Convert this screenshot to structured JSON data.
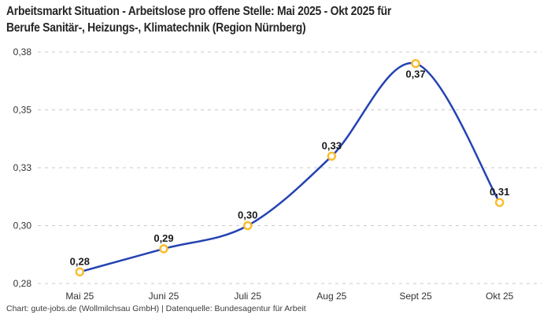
{
  "header": {
    "title_line1": "Arbeitsmarkt Situation - Arbeitslose pro offene Stelle: Mai 2025 - Okt 2025 für",
    "title_line2": "Berufe Sanitär-, Heizungs-, Klimatechnik (Region Nürnberg)"
  },
  "footer": {
    "text": "Chart: gute-jobs.de (Wollmilchsau GmbH) | Datenquelle: Bundesagentur für Arbeit"
  },
  "chart_data": {
    "type": "line",
    "title": "Arbeitsmarkt Situation - Arbeitslose pro offene Stelle: Mai 2025 - Okt 2025 für Berufe Sanitär-, Heizungs-, Klimatechnik (Region Nürnberg)",
    "categories": [
      "Mai 25",
      "Juni 25",
      "Juli 25",
      "Aug 25",
      "Sept 25",
      "Okt 25"
    ],
    "values": [
      0.28,
      0.29,
      0.3,
      0.33,
      0.37,
      0.31
    ],
    "point_labels": [
      "0,28",
      "0,29",
      "0,30",
      "0,33",
      "0,37",
      "0,31"
    ],
    "point_label_position": [
      "above",
      "above",
      "above",
      "above",
      "below",
      "above"
    ],
    "yticks": [
      {
        "value": 0.275,
        "label": "0,28"
      },
      {
        "value": 0.3,
        "label": "0,30"
      },
      {
        "value": 0.325,
        "label": "0,33"
      },
      {
        "value": 0.35,
        "label": "0,35"
      },
      {
        "value": 0.375,
        "label": "0,38"
      }
    ],
    "ylim": [
      0.275,
      0.375
    ],
    "xlabel": "",
    "ylabel": "",
    "grid": "horizontal-dashed",
    "legend": "none",
    "smooth": true,
    "colors": {
      "line": "#2443b2",
      "marker_ring": "#fabd2f",
      "marker_fill": "#ffffff",
      "gridline": "#c9c9c9",
      "tick_label": "#333333",
      "point_label": "#1a1a1a",
      "title": "#262626",
      "footer": "#3c3c3c",
      "background": "#ffffff"
    }
  }
}
